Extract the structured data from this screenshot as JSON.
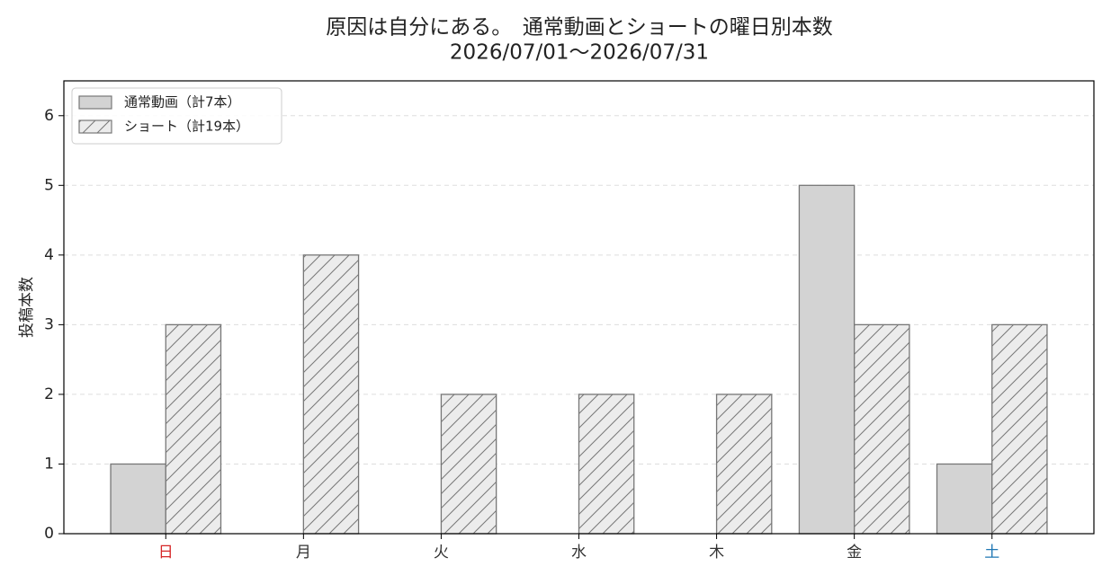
{
  "chart_data": {
    "type": "bar",
    "title": "原因は自分にある。　通常動画とショートの曜日別本数",
    "subtitle": "2026/07/01〜2026/07/31",
    "y_label": "投稿本数",
    "categories": [
      "日",
      "月",
      "火",
      "水",
      "木",
      "金",
      "土"
    ],
    "category_colors": [
      "#d62728",
      "#333333",
      "#333333",
      "#333333",
      "#333333",
      "#333333",
      "#1f77b4"
    ],
    "series": [
      {
        "name": "通常動画（計7本）",
        "color": "#d3d3d3",
        "hatch": false,
        "values": [
          1,
          0,
          0,
          0,
          0,
          5,
          1
        ]
      },
      {
        "name": "ショート（計19本）",
        "color": "#ececec",
        "hatch": true,
        "values": [
          3,
          4,
          2,
          2,
          2,
          3,
          3
        ]
      }
    ],
    "ylim": [
      0,
      6.5
    ],
    "yticks": [
      0,
      1,
      2,
      3,
      4,
      5,
      6
    ],
    "grid": true,
    "legend": "upper left"
  }
}
